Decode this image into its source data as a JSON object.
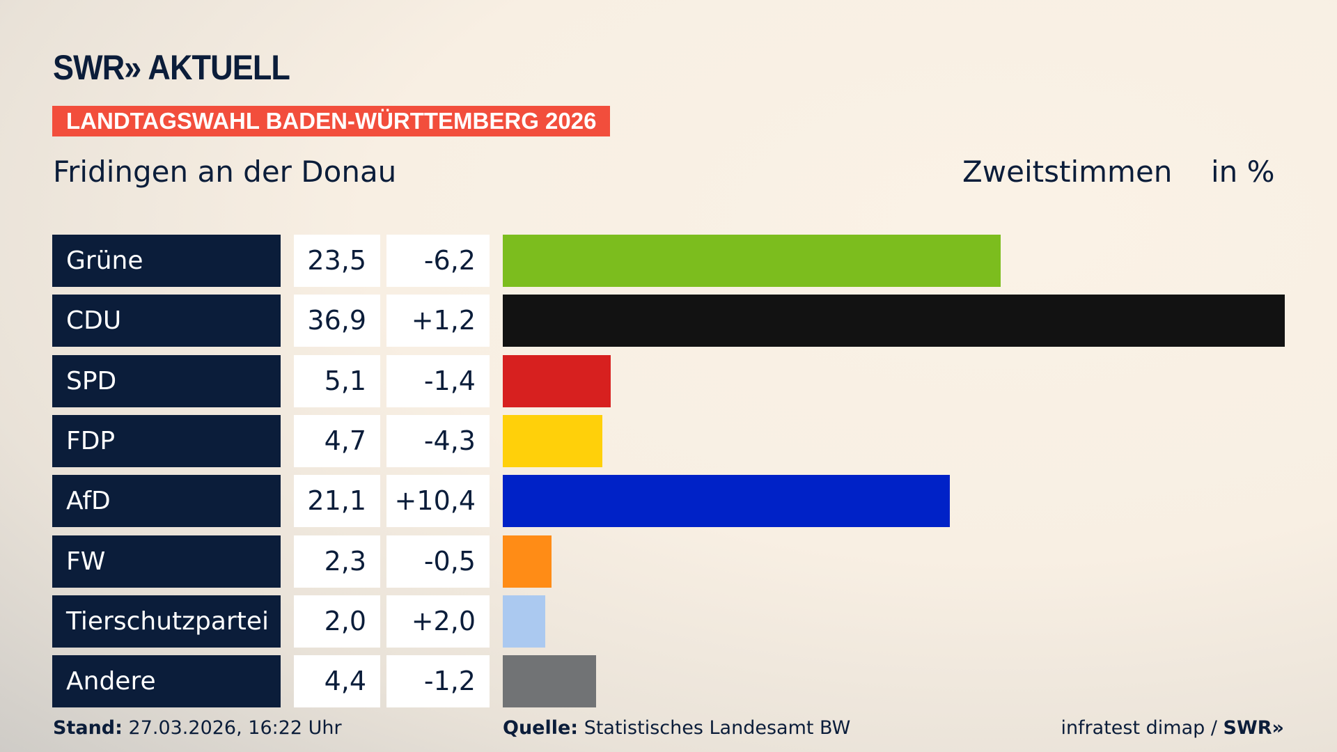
{
  "header": {
    "logo": "SWR» AKTUELL",
    "banner": "LANDTAGSWAHL BADEN-WÜRTTEMBERG 2026",
    "place": "Fridingen an der Donau",
    "vote_type": "Zweitstimmen",
    "unit": "in %"
  },
  "chart_data": {
    "type": "bar",
    "orientation": "horizontal",
    "categories": [
      "Grüne",
      "CDU",
      "SPD",
      "FDP",
      "AfD",
      "FW",
      "Tierschutzpartei",
      "Andere"
    ],
    "values": [
      23.5,
      36.9,
      5.1,
      4.7,
      21.1,
      2.3,
      2.0,
      4.4
    ],
    "values_label": [
      "23,5",
      "36,9",
      "5,1",
      "4,7",
      "21,1",
      "2,3",
      "2,0",
      "4,4"
    ],
    "diff_label": [
      "-6,2",
      "+1,2",
      "-1,4",
      "-4,3",
      "+10,4",
      "-0,5",
      "+2,0",
      "-1,2"
    ],
    "colors": [
      "#7cbd1e",
      "#121212",
      "#d7201f",
      "#ffd00a",
      "#0022c7",
      "#ff8c16",
      "#abc9f0",
      "#717375"
    ]
  },
  "footer": {
    "stand_label": "Stand:",
    "stand_value": "27.03.2026, 16:22 Uhr",
    "source_label": "Quelle:",
    "source_value": "Statistisches Landesamt BW",
    "credit": "infratest dimap / ",
    "credit_logo": "SWR»"
  }
}
